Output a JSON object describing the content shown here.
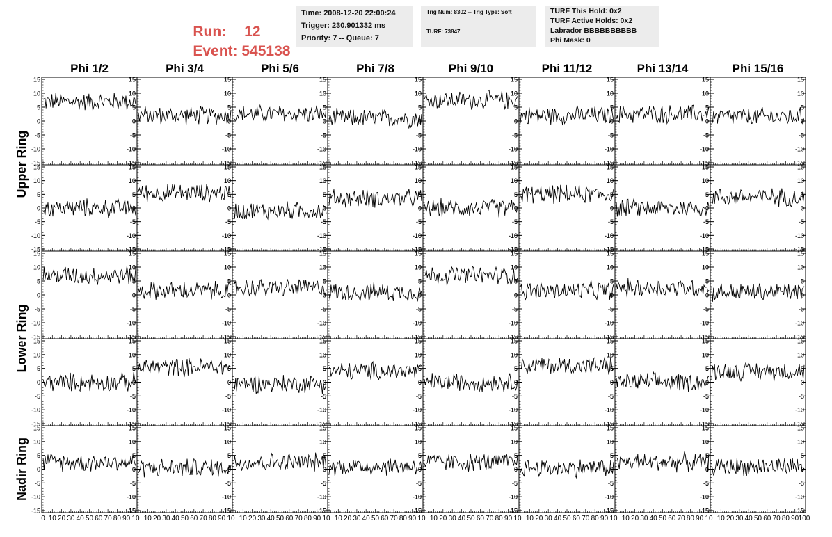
{
  "header": {
    "run_label": "Run:",
    "run_value": "12",
    "event_label": "Event:",
    "event_value": "545138",
    "time_lines": [
      "Time: 2008-12-20 22:00:24",
      "Trigger: 230.901332 ms",
      "Priority: 7 -- Queue: 7"
    ],
    "trig_line": "Trig Num: 8302 -- Trig Type: Soft",
    "turf_line": "TURF: 73847",
    "turf_lines": [
      "TURF This Hold: 0x2",
      "TURF Active Holds: 0x2",
      "Labrador BBBBBBBBBB",
      "Phi Mask: 0"
    ],
    "accent_color": "#d9534f",
    "box_color": "#ececec"
  },
  "chart_data": {
    "type": "line",
    "columns": [
      "Phi 1/2",
      "Phi 3/4",
      "Phi 5/6",
      "Phi 7/8",
      "Phi 9/10",
      "Phi 11/12",
      "Phi 13/14",
      "Phi 15/16"
    ],
    "rows": [
      "Upper Ring",
      "Lower Ring",
      "Nadir Ring"
    ],
    "xlim": [
      0,
      100
    ],
    "ylim": [
      -15,
      15
    ],
    "x_ticks": [
      "0",
      "10",
      "20",
      "30",
      "40",
      "50",
      "60",
      "70",
      "80",
      "90",
      "10"
    ],
    "last_x_ticks": [
      "10",
      "20",
      "30",
      "40",
      "50",
      "60",
      "70",
      "80",
      "90",
      "100"
    ],
    "y_ticks": [
      "15",
      "10",
      "5",
      "0",
      "-5",
      "-10",
      "-15"
    ],
    "traces_per_ring": 2,
    "trace_samples": 96,
    "series_baselines": [
      [
        7,
        2,
        2.5,
        1,
        7.5,
        2,
        2.5,
        1.5
      ],
      [
        0,
        5.5,
        -1,
        3.5,
        0,
        5,
        0,
        4
      ],
      [
        7,
        1.5,
        2.5,
        1,
        7,
        1.5,
        2.5,
        1
      ],
      [
        0,
        5.5,
        -0.5,
        4,
        0,
        6,
        0,
        4
      ],
      [
        2.5,
        0.5,
        2.5,
        1,
        2.5,
        0.5,
        2.5,
        1
      ],
      [
        2.5,
        0.5,
        2.5,
        1,
        2.5,
        0.5,
        2.5,
        1
      ]
    ],
    "series_amplitude": 3,
    "grid": false,
    "line_color": "#000000"
  }
}
